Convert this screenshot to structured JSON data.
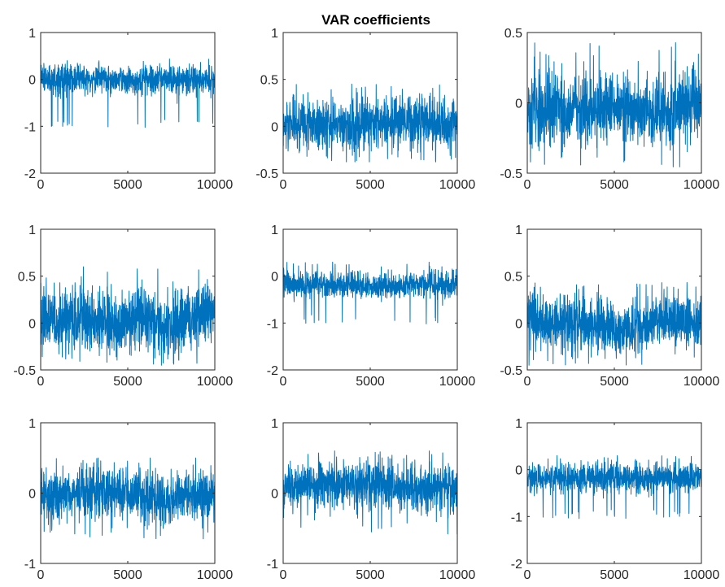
{
  "figure": {
    "title": "VAR coefficients",
    "series_color": "#0072BD",
    "axis_color": "#262626",
    "background": "#ffffff"
  },
  "chart_data": [
    {
      "type": "line",
      "panel": "1-1",
      "title": "",
      "xlabel": "",
      "ylabel": "",
      "grid": false,
      "xlim": [
        0,
        10000
      ],
      "ylim": [
        -2,
        1
      ],
      "xticks": [
        0,
        5000,
        10000
      ],
      "xtick_labels": [
        "0",
        "5000",
        "10000"
      ],
      "yticks": [
        -2,
        -1,
        0,
        1
      ],
      "ytick_labels": [
        "-2",
        "-1",
        "0",
        "1"
      ],
      "x": [
        0,
        10000
      ],
      "n_points": 10000,
      "series": [
        {
          "values_summary": {
            "center": 0.0,
            "typical_upper": 0.3,
            "typical_lower": -0.25,
            "max": 0.45,
            "min": -1.05,
            "downward_spikes_to": -0.95
          }
        }
      ]
    },
    {
      "type": "line",
      "panel": "1-2",
      "title": "",
      "xlabel": "",
      "ylabel": "",
      "grid": false,
      "xlim": [
        0,
        10000
      ],
      "ylim": [
        -0.5,
        1
      ],
      "xticks": [
        0,
        5000,
        10000
      ],
      "xtick_labels": [
        "0",
        "5000",
        "10000"
      ],
      "yticks": [
        -0.5,
        0,
        0.5,
        1
      ],
      "ytick_labels": [
        "-0.5",
        "0",
        "0.5",
        "1"
      ],
      "x": [
        0,
        10000
      ],
      "n_points": 10000,
      "series": [
        {
          "values_summary": {
            "center": 0.02,
            "typical_upper": 0.3,
            "typical_lower": -0.22,
            "max": 0.45,
            "min": -0.38
          }
        }
      ]
    },
    {
      "type": "line",
      "panel": "1-3",
      "title": "",
      "xlabel": "",
      "ylabel": "",
      "grid": false,
      "xlim": [
        0,
        10000
      ],
      "ylim": [
        -0.5,
        0.5
      ],
      "xticks": [
        0,
        5000,
        10000
      ],
      "xtick_labels": [
        "0",
        "5000",
        "10000"
      ],
      "yticks": [
        -0.5,
        0,
        0.5
      ],
      "ytick_labels": [
        "-0.5",
        "0",
        "0.5"
      ],
      "x": [
        0,
        10000
      ],
      "n_points": 10000,
      "series": [
        {
          "values_summary": {
            "center": -0.05,
            "typical_upper": 0.2,
            "typical_lower": -0.3,
            "max": 0.43,
            "min": -0.48
          }
        }
      ]
    },
    {
      "type": "line",
      "panel": "2-1",
      "title": "",
      "xlabel": "",
      "ylabel": "",
      "grid": false,
      "xlim": [
        0,
        10000
      ],
      "ylim": [
        -0.5,
        1
      ],
      "xticks": [
        0,
        5000,
        10000
      ],
      "xtick_labels": [
        "0",
        "5000",
        "10000"
      ],
      "yticks": [
        -0.5,
        0,
        0.5,
        1
      ],
      "ytick_labels": [
        "-0.5",
        "0",
        "0.5",
        "1"
      ],
      "x": [
        0,
        10000
      ],
      "n_points": 10000,
      "series": [
        {
          "values_summary": {
            "center": 0.05,
            "typical_upper": 0.35,
            "typical_lower": -0.3,
            "max": 0.6,
            "min": -0.45
          }
        }
      ]
    },
    {
      "type": "line",
      "panel": "2-2",
      "title": "",
      "xlabel": "",
      "ylabel": "",
      "grid": false,
      "xlim": [
        0,
        10000
      ],
      "ylim": [
        -2,
        1
      ],
      "xticks": [
        0,
        5000,
        10000
      ],
      "xtick_labels": [
        "0",
        "5000",
        "10000"
      ],
      "yticks": [
        -2,
        -1,
        0,
        1
      ],
      "ytick_labels": [
        "-2",
        "-1",
        "0",
        "1"
      ],
      "x": [
        0,
        10000
      ],
      "n_points": 10000,
      "series": [
        {
          "values_summary": {
            "center": -0.15,
            "typical_upper": 0.15,
            "typical_lower": -0.4,
            "max": 0.3,
            "min": -1.15,
            "downward_spikes_to": -0.95
          }
        }
      ]
    },
    {
      "type": "line",
      "panel": "2-3",
      "title": "",
      "xlabel": "",
      "ylabel": "",
      "grid": false,
      "xlim": [
        0,
        10000
      ],
      "ylim": [
        -0.5,
        1
      ],
      "xticks": [
        0,
        5000,
        10000
      ],
      "xtick_labels": [
        "0",
        "5000",
        "10000"
      ],
      "yticks": [
        -0.5,
        0,
        0.5,
        1
      ],
      "ytick_labels": [
        "-0.5",
        "0",
        "0.5",
        "1"
      ],
      "x": [
        0,
        10000
      ],
      "n_points": 10000,
      "series": [
        {
          "values_summary": {
            "center": 0.02,
            "typical_upper": 0.28,
            "typical_lower": -0.25,
            "max": 0.45,
            "min": -0.45
          }
        }
      ]
    },
    {
      "type": "line",
      "panel": "3-1",
      "title": "",
      "xlabel": "",
      "ylabel": "",
      "grid": false,
      "xlim": [
        0,
        10000
      ],
      "ylim": [
        -1,
        1
      ],
      "xticks": [
        0,
        5000,
        10000
      ],
      "xtick_labels": [
        "0",
        "5000",
        "10000"
      ],
      "yticks": [
        -1,
        0,
        1
      ],
      "ytick_labels": [
        "-1",
        "0",
        "1"
      ],
      "x": [
        0,
        10000
      ],
      "n_points": 10000,
      "series": [
        {
          "values_summary": {
            "center": -0.05,
            "typical_upper": 0.3,
            "typical_lower": -0.4,
            "max": 0.5,
            "min": -0.65
          }
        }
      ]
    },
    {
      "type": "line",
      "panel": "3-2",
      "title": "",
      "xlabel": "",
      "ylabel": "",
      "grid": false,
      "xlim": [
        0,
        10000
      ],
      "ylim": [
        -1,
        1
      ],
      "xticks": [
        0,
        5000,
        10000
      ],
      "xtick_labels": [
        "0",
        "5000",
        "10000"
      ],
      "yticks": [
        -1,
        0,
        1
      ],
      "ytick_labels": [
        "-1",
        "0",
        "1"
      ],
      "x": [
        0,
        10000
      ],
      "n_points": 10000,
      "series": [
        {
          "values_summary": {
            "center": 0.08,
            "typical_upper": 0.38,
            "typical_lower": -0.25,
            "max": 0.6,
            "min": -0.6
          }
        }
      ]
    },
    {
      "type": "line",
      "panel": "3-3",
      "title": "",
      "xlabel": "",
      "ylabel": "",
      "grid": false,
      "xlim": [
        0,
        10000
      ],
      "ylim": [
        -2,
        1
      ],
      "xticks": [
        0,
        5000,
        10000
      ],
      "xtick_labels": [
        "0",
        "5000",
        "10000"
      ],
      "yticks": [
        -2,
        -1,
        0,
        1
      ],
      "ytick_labels": [
        "-2",
        "-1",
        "0",
        "1"
      ],
      "x": [
        0,
        10000
      ],
      "n_points": 10000,
      "series": [
        {
          "values_summary": {
            "center": -0.15,
            "typical_upper": 0.15,
            "typical_lower": -0.45,
            "max": 0.3,
            "min": -1.15,
            "downward_spikes_to": -0.95
          }
        }
      ]
    }
  ]
}
